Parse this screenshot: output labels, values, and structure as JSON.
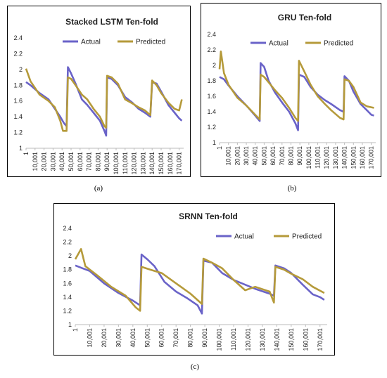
{
  "colors": {
    "actual": "#6A63C8",
    "predicted": "#B59A3A",
    "overlap": "#E0766A"
  },
  "captions": [
    "(a)",
    "(b)",
    "(c)"
  ],
  "chart_data": [
    {
      "type": "line",
      "title": "Stacked LSTM Ten-fold",
      "xlabel": "",
      "ylabel": "",
      "ylim": [
        1,
        2.4
      ],
      "yticks": [
        "1",
        "1.2",
        "1.4",
        "1.6",
        "1.8",
        "2",
        "2.2",
        "2.4"
      ],
      "xticks": [
        "1",
        "10,001",
        "20,001",
        "30,001",
        "40,001",
        "50,001",
        "60,001",
        "70,001",
        "80,001",
        "90,001",
        "100,001",
        "110,001",
        "120,001",
        "130,001",
        "140,001",
        "150,001",
        "160,001",
        "170,001"
      ],
      "xlim": [
        1,
        175000
      ],
      "legend": "top",
      "grid": false,
      "series": [
        {
          "name": "Actual",
          "points": [
            [
              1,
              1.84
            ],
            [
              5000,
              1.8
            ],
            [
              15000,
              1.7
            ],
            [
              25000,
              1.62
            ],
            [
              32000,
              1.5
            ],
            [
              38000,
              1.4
            ],
            [
              42000,
              1.32
            ],
            [
              45000,
              1.28
            ],
            [
              46500,
              2.03
            ],
            [
              50000,
              1.95
            ],
            [
              55000,
              1.82
            ],
            [
              62000,
              1.62
            ],
            [
              68000,
              1.55
            ],
            [
              75000,
              1.45
            ],
            [
              82000,
              1.35
            ],
            [
              87000,
              1.22
            ],
            [
              89000,
              1.16
            ],
            [
              90000,
              1.9
            ],
            [
              95000,
              1.88
            ],
            [
              102000,
              1.8
            ],
            [
              110000,
              1.65
            ],
            [
              118000,
              1.58
            ],
            [
              125000,
              1.5
            ],
            [
              132000,
              1.45
            ],
            [
              138000,
              1.4
            ],
            [
              140000,
              1.84
            ],
            [
              145000,
              1.82
            ],
            [
              150000,
              1.72
            ],
            [
              158000,
              1.55
            ],
            [
              165000,
              1.45
            ],
            [
              170000,
              1.38
            ],
            [
              173000,
              1.35
            ]
          ]
        },
        {
          "name": "Predicted",
          "points": [
            [
              1,
              2.01
            ],
            [
              5000,
              1.85
            ],
            [
              15000,
              1.68
            ],
            [
              25000,
              1.6
            ],
            [
              32000,
              1.52
            ],
            [
              38000,
              1.35
            ],
            [
              41000,
              1.22
            ],
            [
              45000,
              1.22
            ],
            [
              46500,
              1.9
            ],
            [
              50000,
              1.88
            ],
            [
              55000,
              1.8
            ],
            [
              62000,
              1.68
            ],
            [
              68000,
              1.62
            ],
            [
              75000,
              1.5
            ],
            [
              82000,
              1.4
            ],
            [
              87000,
              1.28
            ],
            [
              89000,
              1.26
            ],
            [
              90000,
              1.92
            ],
            [
              95000,
              1.9
            ],
            [
              102000,
              1.82
            ],
            [
              110000,
              1.62
            ],
            [
              118000,
              1.57
            ],
            [
              125000,
              1.52
            ],
            [
              132000,
              1.48
            ],
            [
              138000,
              1.42
            ],
            [
              140000,
              1.86
            ],
            [
              145000,
              1.8
            ],
            [
              150000,
              1.7
            ],
            [
              158000,
              1.58
            ],
            [
              165000,
              1.5
            ],
            [
              170000,
              1.48
            ],
            [
              173000,
              1.62
            ]
          ]
        }
      ]
    },
    {
      "type": "line",
      "title": "GRU Ten-fold",
      "xlabel": "",
      "ylabel": "",
      "ylim": [
        1,
        2.4
      ],
      "yticks": [
        "1",
        "1.2",
        "1.4",
        "1.6",
        "1.8",
        "2",
        "2.2",
        "2.4"
      ],
      "xticks": [
        "1",
        "10,001",
        "20,001",
        "30,001",
        "40,001",
        "50,001",
        "60,001",
        "70,001",
        "80,001",
        "90,001",
        "100,001",
        "110,001",
        "120,001",
        "130,001",
        "140,001",
        "150,001",
        "160,001",
        "170,001"
      ],
      "xlim": [
        1,
        175000
      ],
      "legend": "top",
      "grid": false,
      "series": [
        {
          "name": "Actual",
          "points": [
            [
              1,
              1.85
            ],
            [
              5000,
              1.82
            ],
            [
              10000,
              1.74
            ],
            [
              20000,
              1.6
            ],
            [
              30000,
              1.48
            ],
            [
              40000,
              1.35
            ],
            [
              45000,
              1.28
            ],
            [
              46000,
              2.03
            ],
            [
              50000,
              1.98
            ],
            [
              55000,
              1.8
            ],
            [
              62000,
              1.65
            ],
            [
              70000,
              1.52
            ],
            [
              78000,
              1.4
            ],
            [
              85000,
              1.25
            ],
            [
              88000,
              1.16
            ],
            [
              89000,
              1.88
            ],
            [
              95000,
              1.85
            ],
            [
              102000,
              1.72
            ],
            [
              110000,
              1.62
            ],
            [
              118000,
              1.55
            ],
            [
              125000,
              1.5
            ],
            [
              135000,
              1.42
            ],
            [
              139000,
              1.4
            ],
            [
              140000,
              1.86
            ],
            [
              145000,
              1.8
            ],
            [
              150000,
              1.66
            ],
            [
              158000,
              1.5
            ],
            [
              165000,
              1.42
            ],
            [
              170000,
              1.36
            ],
            [
              173000,
              1.35
            ]
          ]
        },
        {
          "name": "Predicted",
          "points": [
            [
              1,
              1.95
            ],
            [
              1500,
              2.18
            ],
            [
              5000,
              1.9
            ],
            [
              10000,
              1.75
            ],
            [
              20000,
              1.58
            ],
            [
              30000,
              1.48
            ],
            [
              40000,
              1.36
            ],
            [
              45000,
              1.3
            ],
            [
              46000,
              1.88
            ],
            [
              50000,
              1.85
            ],
            [
              55000,
              1.78
            ],
            [
              62000,
              1.68
            ],
            [
              70000,
              1.58
            ],
            [
              78000,
              1.45
            ],
            [
              85000,
              1.32
            ],
            [
              88000,
              1.28
            ],
            [
              89000,
              2.06
            ],
            [
              95000,
              1.92
            ],
            [
              102000,
              1.75
            ],
            [
              110000,
              1.6
            ],
            [
              118000,
              1.5
            ],
            [
              125000,
              1.42
            ],
            [
              135000,
              1.32
            ],
            [
              139000,
              1.3
            ],
            [
              140000,
              1.82
            ],
            [
              145000,
              1.8
            ],
            [
              150000,
              1.72
            ],
            [
              158000,
              1.52
            ],
            [
              165000,
              1.47
            ],
            [
              173000,
              1.45
            ]
          ]
        }
      ]
    },
    {
      "type": "line",
      "title": "SRNN Ten-fold",
      "xlabel": "",
      "ylabel": "",
      "ylim": [
        1,
        2.4
      ],
      "yticks": [
        "1",
        "1.2",
        "1.4",
        "1.6",
        "1.8",
        "2",
        "2.2",
        "2.4"
      ],
      "xticks": [
        "1",
        "10,001",
        "20,001",
        "30,001",
        "40,001",
        "50,001",
        "60,001",
        "70,001",
        "80,001",
        "90,001",
        "100,001",
        "110,001",
        "120,001",
        "130,001",
        "140,001",
        "150,001",
        "160,001",
        "170,001"
      ],
      "xlim": [
        1,
        175000
      ],
      "legend": "top",
      "grid": false,
      "series": [
        {
          "name": "Actual",
          "points": [
            [
              1,
              1.86
            ],
            [
              5000,
              1.82
            ],
            [
              10000,
              1.78
            ],
            [
              20000,
              1.6
            ],
            [
              30000,
              1.46
            ],
            [
              40000,
              1.35
            ],
            [
              45000,
              1.28
            ],
            [
              46000,
              2.02
            ],
            [
              50000,
              1.95
            ],
            [
              55000,
              1.85
            ],
            [
              62000,
              1.62
            ],
            [
              70000,
              1.48
            ],
            [
              78000,
              1.38
            ],
            [
              85000,
              1.28
            ],
            [
              88000,
              1.16
            ],
            [
              89000,
              1.93
            ],
            [
              95000,
              1.9
            ],
            [
              102000,
              1.75
            ],
            [
              110000,
              1.65
            ],
            [
              118000,
              1.58
            ],
            [
              125000,
              1.52
            ],
            [
              135000,
              1.45
            ],
            [
              138000,
              1.42
            ],
            [
              139000,
              1.86
            ],
            [
              145000,
              1.82
            ],
            [
              150000,
              1.75
            ],
            [
              158000,
              1.58
            ],
            [
              165000,
              1.44
            ],
            [
              170000,
              1.4
            ],
            [
              173000,
              1.36
            ]
          ]
        },
        {
          "name": "Predicted",
          "points": [
            [
              1,
              1.95
            ],
            [
              4000,
              2.1
            ],
            [
              7000,
              1.85
            ],
            [
              15000,
              1.72
            ],
            [
              25000,
              1.55
            ],
            [
              35000,
              1.42
            ],
            [
              42000,
              1.25
            ],
            [
              45000,
              1.2
            ],
            [
              46000,
              1.84
            ],
            [
              52000,
              1.8
            ],
            [
              60000,
              1.75
            ],
            [
              70000,
              1.6
            ],
            [
              80000,
              1.45
            ],
            [
              88000,
              1.3
            ],
            [
              89000,
              1.96
            ],
            [
              95000,
              1.9
            ],
            [
              102000,
              1.82
            ],
            [
              110000,
              1.65
            ],
            [
              118000,
              1.5
            ],
            [
              125000,
              1.55
            ],
            [
              135000,
              1.48
            ],
            [
              138000,
              1.32
            ],
            [
              139000,
              1.84
            ],
            [
              145000,
              1.8
            ],
            [
              150000,
              1.74
            ],
            [
              158000,
              1.66
            ],
            [
              165000,
              1.55
            ],
            [
              173000,
              1.46
            ]
          ]
        }
      ]
    }
  ]
}
